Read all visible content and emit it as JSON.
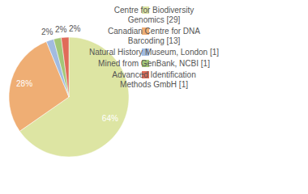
{
  "chart_data": {
    "type": "pie",
    "categories": [
      "Centre for Biodiversity Genomics [29]",
      "Canadian Centre for DNA Barcoding [13]",
      "Natural History Museum, London [1]",
      "Mined from GenBank, NCBI [1]",
      "Advanced Identification Methods GmbH [1]"
    ],
    "values": [
      64,
      28,
      2,
      2,
      2
    ],
    "value_labels": [
      "64%",
      "28%",
      "2%",
      "2%",
      "2%"
    ],
    "colors": [
      "#dde5a3",
      "#efae74",
      "#a2bbe0",
      "#a3c777",
      "#e06b59"
    ],
    "data_labels": true,
    "legend": "right"
  }
}
